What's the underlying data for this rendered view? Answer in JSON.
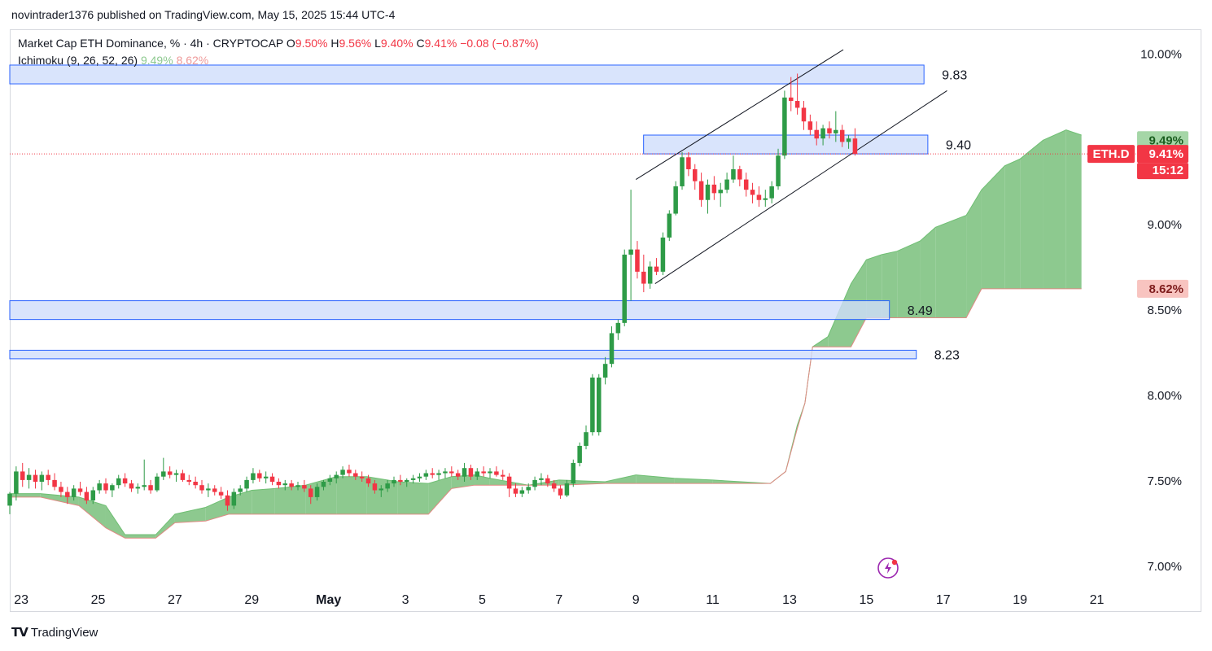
{
  "header": {
    "publish_line": "novintrader1376 published on TradingView.com, May 15, 2025 15:44 UTC-4"
  },
  "legend": {
    "symbol_title": "Market Cap ETH Dominance, % · 4h · CRYPTOCAP",
    "o_label": "O",
    "o_value": "9.50%",
    "h_label": "H",
    "h_value": "9.56%",
    "l_label": "L",
    "l_value": "9.40%",
    "c_label": "C",
    "c_value": "9.41%",
    "change": "−0.08 (−0.87%)",
    "indicator_name": "Ichimoku (9, 26, 52, 26)",
    "span_a_value": "9.49%",
    "span_b_value": "8.62%"
  },
  "price_tags": {
    "symbol": "ETH.D",
    "last_price": "9.41%",
    "countdown": "15:12",
    "span_a": "9.49%",
    "span_b": "8.62%"
  },
  "footer": {
    "brand": "TradingView"
  },
  "colors": {
    "up": "#089981",
    "up_body": "#2e9b47",
    "down": "#f23645",
    "cloud_bull": "#8dc98f",
    "cloud_bear": "#f4a7a2",
    "zone_fill": "#d0ddfb",
    "zone_stroke": "#2962ff"
  },
  "chart_data": {
    "type": "candlestick",
    "title": "Market Cap ETH Dominance, % · 4h · CRYPTOCAP",
    "y_axis": {
      "ticks": [
        "10.00%",
        "9.00%",
        "8.50%",
        "8.00%",
        "7.50%",
        "7.00%"
      ],
      "tick_values": [
        10.0,
        9.0,
        8.5,
        8.0,
        7.5,
        7.0
      ],
      "ylim": [
        6.88,
        10.13
      ]
    },
    "x_axis": {
      "ticks": [
        "23",
        "25",
        "27",
        "29",
        "May",
        "3",
        "5",
        "7",
        "9",
        "11",
        "13",
        "15",
        "17",
        "19",
        "21"
      ],
      "tick_days": [
        -8,
        -6,
        -4,
        -2,
        0,
        2,
        4,
        6,
        8,
        10,
        12,
        14,
        16,
        18,
        20
      ],
      "xlim": [
        -8.3,
        20.9
      ],
      "unit": "days relative to May 1, 2025"
    },
    "grid": false,
    "candle_day_step": 0.1667,
    "candles_start_day": -8.3,
    "candles": [
      [
        7.35,
        7.43,
        7.3,
        7.42
      ],
      [
        7.42,
        7.58,
        7.38,
        7.55
      ],
      [
        7.55,
        7.6,
        7.46,
        7.5
      ],
      [
        7.5,
        7.57,
        7.45,
        7.53
      ],
      [
        7.53,
        7.56,
        7.45,
        7.49
      ],
      [
        7.49,
        7.55,
        7.44,
        7.53
      ],
      [
        7.53,
        7.56,
        7.47,
        7.5
      ],
      [
        7.5,
        7.54,
        7.44,
        7.46
      ],
      [
        7.46,
        7.49,
        7.4,
        7.43
      ],
      [
        7.43,
        7.46,
        7.36,
        7.4
      ],
      [
        7.4,
        7.47,
        7.38,
        7.45
      ],
      [
        7.45,
        7.49,
        7.41,
        7.43
      ],
      [
        7.43,
        7.46,
        7.36,
        7.38
      ],
      [
        7.38,
        7.46,
        7.36,
        7.44
      ],
      [
        7.44,
        7.5,
        7.42,
        7.48
      ],
      [
        7.48,
        7.51,
        7.42,
        7.44
      ],
      [
        7.44,
        7.48,
        7.4,
        7.47
      ],
      [
        7.47,
        7.53,
        7.45,
        7.51
      ],
      [
        7.51,
        7.54,
        7.46,
        7.48
      ],
      [
        7.48,
        7.5,
        7.43,
        7.45
      ],
      [
        7.45,
        7.48,
        7.42,
        7.46
      ],
      [
        7.46,
        7.62,
        7.44,
        7.47
      ],
      [
        7.47,
        7.5,
        7.42,
        7.44
      ],
      [
        7.44,
        7.54,
        7.43,
        7.52
      ],
      [
        7.52,
        7.63,
        7.5,
        7.55
      ],
      [
        7.55,
        7.58,
        7.51,
        7.53
      ],
      [
        7.53,
        7.56,
        7.49,
        7.54
      ],
      [
        7.54,
        7.56,
        7.49,
        7.5
      ],
      [
        7.5,
        7.53,
        7.47,
        7.49
      ],
      [
        7.49,
        7.52,
        7.45,
        7.47
      ],
      [
        7.47,
        7.5,
        7.42,
        7.44
      ],
      [
        7.44,
        7.48,
        7.4,
        7.45
      ],
      [
        7.45,
        7.47,
        7.41,
        7.43
      ],
      [
        7.43,
        7.46,
        7.39,
        7.41
      ],
      [
        7.41,
        7.44,
        7.32,
        7.35
      ],
      [
        7.35,
        7.45,
        7.33,
        7.43
      ],
      [
        7.43,
        7.47,
        7.41,
        7.45
      ],
      [
        7.45,
        7.52,
        7.43,
        7.5
      ],
      [
        7.5,
        7.57,
        7.48,
        7.54
      ],
      [
        7.54,
        7.56,
        7.49,
        7.51
      ],
      [
        7.51,
        7.55,
        7.48,
        7.52
      ],
      [
        7.52,
        7.54,
        7.47,
        7.49
      ],
      [
        7.49,
        7.51,
        7.45,
        7.47
      ],
      [
        7.47,
        7.5,
        7.44,
        7.48
      ],
      [
        7.48,
        7.5,
        7.44,
        7.46
      ],
      [
        7.46,
        7.49,
        7.44,
        7.47
      ],
      [
        7.47,
        7.5,
        7.43,
        7.45
      ],
      [
        7.45,
        7.47,
        7.36,
        7.4
      ],
      [
        7.4,
        7.48,
        7.38,
        7.46
      ],
      [
        7.46,
        7.5,
        7.44,
        7.49
      ],
      [
        7.49,
        7.53,
        7.47,
        7.51
      ],
      [
        7.51,
        7.55,
        7.48,
        7.53
      ],
      [
        7.53,
        7.58,
        7.51,
        7.56
      ],
      [
        7.56,
        7.59,
        7.52,
        7.54
      ],
      [
        7.54,
        7.56,
        7.5,
        7.52
      ],
      [
        7.52,
        7.55,
        7.49,
        7.51
      ],
      [
        7.51,
        7.53,
        7.46,
        7.48
      ],
      [
        7.48,
        7.5,
        7.42,
        7.44
      ],
      [
        7.44,
        7.47,
        7.4,
        7.45
      ],
      [
        7.45,
        7.5,
        7.43,
        7.48
      ],
      [
        7.48,
        7.52,
        7.46,
        7.5
      ],
      [
        7.5,
        7.53,
        7.47,
        7.49
      ],
      [
        7.49,
        7.51,
        7.46,
        7.5
      ],
      [
        7.5,
        7.53,
        7.48,
        7.51
      ],
      [
        7.51,
        7.54,
        7.49,
        7.52
      ],
      [
        7.52,
        7.56,
        7.5,
        7.54
      ],
      [
        7.54,
        7.57,
        7.51,
        7.53
      ],
      [
        7.53,
        7.56,
        7.5,
        7.54
      ],
      [
        7.54,
        7.57,
        7.51,
        7.55
      ],
      [
        7.55,
        7.58,
        7.52,
        7.54
      ],
      [
        7.54,
        7.56,
        7.5,
        7.52
      ],
      [
        7.52,
        7.6,
        7.49,
        7.57
      ],
      [
        7.57,
        7.59,
        7.5,
        7.52
      ],
      [
        7.52,
        7.57,
        7.5,
        7.55
      ],
      [
        7.55,
        7.58,
        7.52,
        7.54
      ],
      [
        7.54,
        7.57,
        7.51,
        7.55
      ],
      [
        7.55,
        7.58,
        7.52,
        7.53
      ],
      [
        7.53,
        7.56,
        7.5,
        7.52
      ],
      [
        7.52,
        7.54,
        7.4,
        7.45
      ],
      [
        7.45,
        7.48,
        7.4,
        7.42
      ],
      [
        7.42,
        7.46,
        7.4,
        7.44
      ],
      [
        7.44,
        7.48,
        7.42,
        7.46
      ],
      [
        7.46,
        7.52,
        7.44,
        7.5
      ],
      [
        7.5,
        7.54,
        7.47,
        7.51
      ],
      [
        7.51,
        7.53,
        7.46,
        7.48
      ],
      [
        7.48,
        7.5,
        7.43,
        7.45
      ],
      [
        7.45,
        7.47,
        7.39,
        7.41
      ],
      [
        7.41,
        7.5,
        7.4,
        7.48
      ],
      [
        7.48,
        7.62,
        7.46,
        7.6
      ],
      [
        7.6,
        7.72,
        7.58,
        7.7
      ],
      [
        7.7,
        7.82,
        7.68,
        7.78
      ],
      [
        7.78,
        8.12,
        7.76,
        8.1
      ],
      [
        7.78,
        8.12,
        7.76,
        8.1
      ],
      [
        8.1,
        8.22,
        8.06,
        8.18
      ],
      [
        8.18,
        8.4,
        8.16,
        8.36
      ],
      [
        8.36,
        8.44,
        8.32,
        8.42
      ],
      [
        8.42,
        8.85,
        8.4,
        8.82
      ],
      [
        8.82,
        9.2,
        8.55,
        8.85
      ],
      [
        8.85,
        8.9,
        8.68,
        8.72
      ],
      [
        8.72,
        8.82,
        8.6,
        8.65
      ],
      [
        8.65,
        8.78,
        8.62,
        8.75
      ],
      [
        8.75,
        8.8,
        8.7,
        8.72
      ],
      [
        8.72,
        8.95,
        8.7,
        8.92
      ],
      [
        8.92,
        9.08,
        8.9,
        9.06
      ],
      [
        9.06,
        9.25,
        9.05,
        9.22
      ],
      [
        9.22,
        9.42,
        9.2,
        9.39
      ],
      [
        9.39,
        9.42,
        9.28,
        9.32
      ],
      [
        9.32,
        9.35,
        9.2,
        9.25
      ],
      [
        9.25,
        9.3,
        9.1,
        9.14
      ],
      [
        9.14,
        9.26,
        9.06,
        9.23
      ],
      [
        9.23,
        9.28,
        9.14,
        9.18
      ],
      [
        9.18,
        9.24,
        9.1,
        9.2
      ],
      [
        9.2,
        9.3,
        9.18,
        9.26
      ],
      [
        9.26,
        9.4,
        9.24,
        9.32
      ],
      [
        9.32,
        9.34,
        9.22,
        9.26
      ],
      [
        9.26,
        9.3,
        9.16,
        9.2
      ],
      [
        9.2,
        9.24,
        9.12,
        9.17
      ],
      [
        9.17,
        9.22,
        9.1,
        9.14
      ],
      [
        9.14,
        9.2,
        9.1,
        9.15
      ],
      [
        9.15,
        9.25,
        9.12,
        9.22
      ],
      [
        9.22,
        9.44,
        9.2,
        9.4
      ],
      [
        9.4,
        9.78,
        9.38,
        9.74
      ],
      [
        9.74,
        9.86,
        9.66,
        9.72
      ],
      [
        9.72,
        9.88,
        9.64,
        9.68
      ],
      [
        9.68,
        9.72,
        9.55,
        9.6
      ],
      [
        9.6,
        9.64,
        9.52,
        9.55
      ],
      [
        9.55,
        9.6,
        9.46,
        9.5
      ],
      [
        9.5,
        9.58,
        9.46,
        9.56
      ],
      [
        9.56,
        9.6,
        9.5,
        9.53
      ],
      [
        9.53,
        9.66,
        9.48,
        9.55
      ],
      [
        9.55,
        9.58,
        9.45,
        9.48
      ],
      [
        9.48,
        9.52,
        9.44,
        9.5
      ],
      [
        9.5,
        9.56,
        9.4,
        9.41
      ]
    ],
    "ichimoku": {
      "params": "9, 26, 52, 26",
      "span_a_last": 9.49,
      "span_b_last": 8.62,
      "cloud_days": [
        -8.3,
        -7.5,
        -6.5,
        -5.8,
        -5.3,
        -4.5,
        -4,
        -3.2,
        -2.6,
        -2,
        -1.4,
        -0.6,
        0.2,
        1,
        1.8,
        2.6,
        3.2,
        3.8,
        4.2,
        5.2,
        6,
        7.2,
        8,
        9,
        10,
        11.5,
        11.9,
        12.2,
        12.4,
        12.6,
        13,
        13.6,
        14,
        14.4,
        14.8,
        15.4,
        15.8,
        16.6,
        17,
        17.6,
        18,
        18.6,
        19.2,
        19.6
      ],
      "span_a": [
        7.42,
        7.42,
        7.4,
        7.35,
        7.18,
        7.18,
        7.3,
        7.34,
        7.4,
        7.44,
        7.45,
        7.47,
        7.52,
        7.52,
        7.49,
        7.48,
        7.52,
        7.53,
        7.51,
        7.47,
        7.5,
        7.49,
        7.53,
        7.51,
        7.5,
        7.48,
        7.55,
        7.82,
        7.95,
        8.28,
        8.34,
        8.65,
        8.79,
        8.82,
        8.84,
        8.9,
        8.98,
        9.05,
        9.2,
        9.34,
        9.38,
        9.49,
        9.55,
        9.52
      ],
      "span_b": [
        7.4,
        7.4,
        7.35,
        7.22,
        7.16,
        7.16,
        7.25,
        7.26,
        7.3,
        7.3,
        7.3,
        7.3,
        7.3,
        7.3,
        7.3,
        7.3,
        7.45,
        7.47,
        7.47,
        7.47,
        7.47,
        7.48,
        7.48,
        7.48,
        7.48,
        7.48,
        7.55,
        7.8,
        7.95,
        8.28,
        8.28,
        8.28,
        8.45,
        8.45,
        8.45,
        8.45,
        8.45,
        8.45,
        8.62,
        8.62,
        8.62,
        8.62,
        8.62,
        8.62
      ]
    },
    "zones": [
      {
        "top": 9.93,
        "bottom": 9.82,
        "day_from": -8.3,
        "day_to": 15.5,
        "label": "9.83"
      },
      {
        "top": 9.52,
        "bottom": 9.41,
        "day_from": 8.2,
        "day_to": 15.6,
        "label": "9.40"
      },
      {
        "top": 8.55,
        "bottom": 8.44,
        "day_from": -8.3,
        "day_to": 14.6,
        "label": "8.49"
      },
      {
        "top": 8.26,
        "bottom": 8.21,
        "day_from": -8.3,
        "day_to": 15.3,
        "label": "8.23"
      }
    ],
    "trendlines": [
      {
        "from": [
          8.0,
          9.26
        ],
        "to": [
          13.4,
          10.02
        ]
      },
      {
        "from": [
          8.5,
          8.65
        ],
        "to": [
          16.1,
          9.78
        ]
      }
    ],
    "current_price": 9.41
  }
}
